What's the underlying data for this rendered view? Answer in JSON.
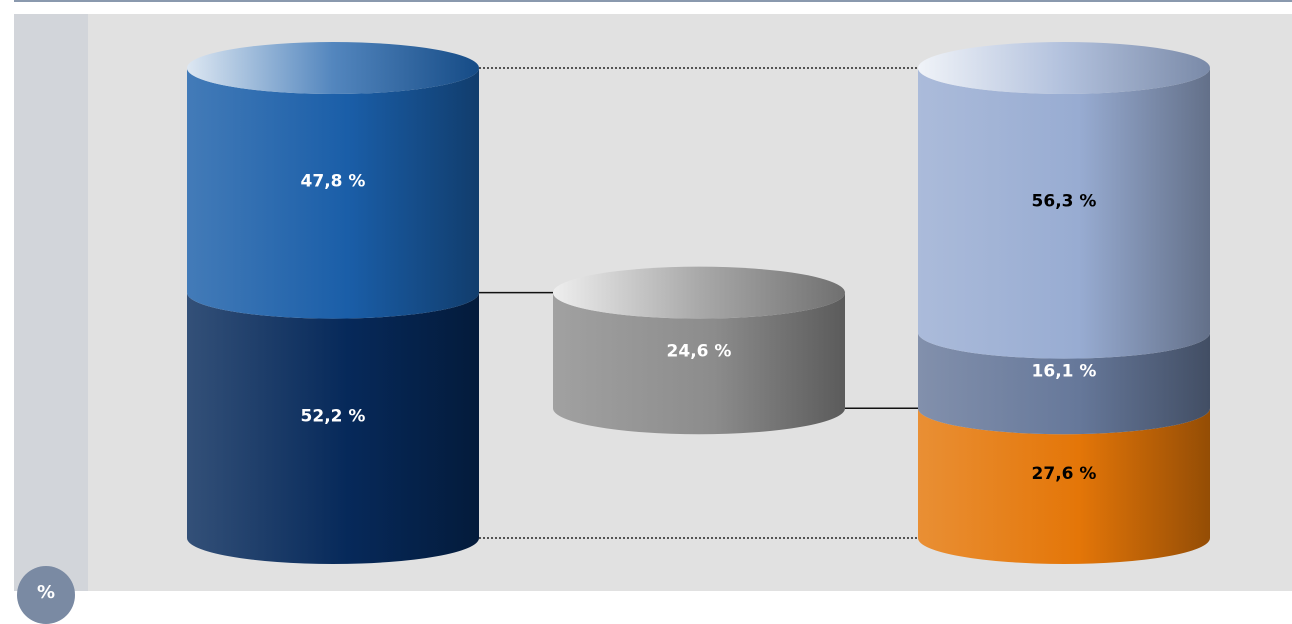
{
  "colors": {
    "background": "#e1e1e1",
    "left_band": "#d2d5da",
    "top_rule": "#8a99ae"
  },
  "unit_badge": {
    "label": "%"
  },
  "chart_data": {
    "type": "stacked-cylinder",
    "title": "",
    "columns": [
      {
        "name": "",
        "segments": [
          {
            "value": 52.2,
            "label": "52,2 %",
            "color": "#06295a",
            "text_color": "#ffffff"
          },
          {
            "value": 47.8,
            "label": "47,8 %",
            "color": "#1a5ea8",
            "text_color": "#ffffff"
          }
        ]
      },
      {
        "name": "",
        "segments": [
          {
            "value": 24.6,
            "label": "24,6 %",
            "color": "#8c8c8c",
            "text_color": "#ffffff"
          }
        ]
      },
      {
        "name": "",
        "segments": [
          {
            "value": 27.6,
            "label": "27,6 %",
            "color": "#e47608",
            "text_color": "#000000"
          },
          {
            "value": 16.1,
            "label": "16,1 %",
            "color": "#66789a",
            "text_color": "#ffffff"
          },
          {
            "value": 56.3,
            "label": "56,3 %",
            "color": "#98acd2",
            "text_color": "#000000"
          }
        ]
      }
    ]
  }
}
